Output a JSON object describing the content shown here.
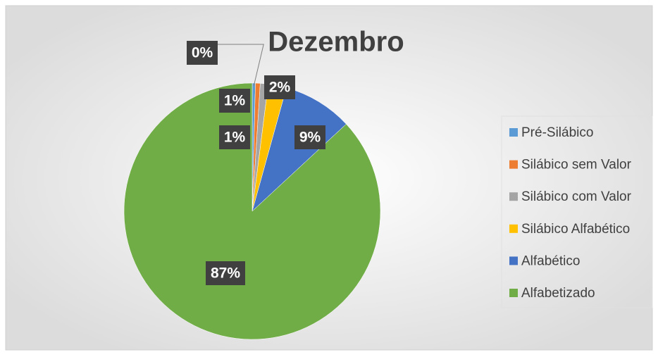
{
  "chart_data": {
    "type": "pie",
    "title": "Dezembro",
    "categories": [
      "Pré-Silábico",
      "Silábico sem Valor",
      "Silábico com Valor",
      "Silábico Alfabético",
      "Alfabético",
      "Alfabetizado"
    ],
    "values": [
      0.4,
      0.6,
      1.0,
      2.3,
      8.8,
      86.9
    ],
    "value_labels": [
      "0%",
      "1%",
      "1%",
      "2%",
      "9%",
      "87%"
    ],
    "colors": [
      "#5b9bd5",
      "#ed7d31",
      "#a5a5a5",
      "#ffc000",
      "#4472c4",
      "#70ad47"
    ],
    "legend": "right"
  }
}
